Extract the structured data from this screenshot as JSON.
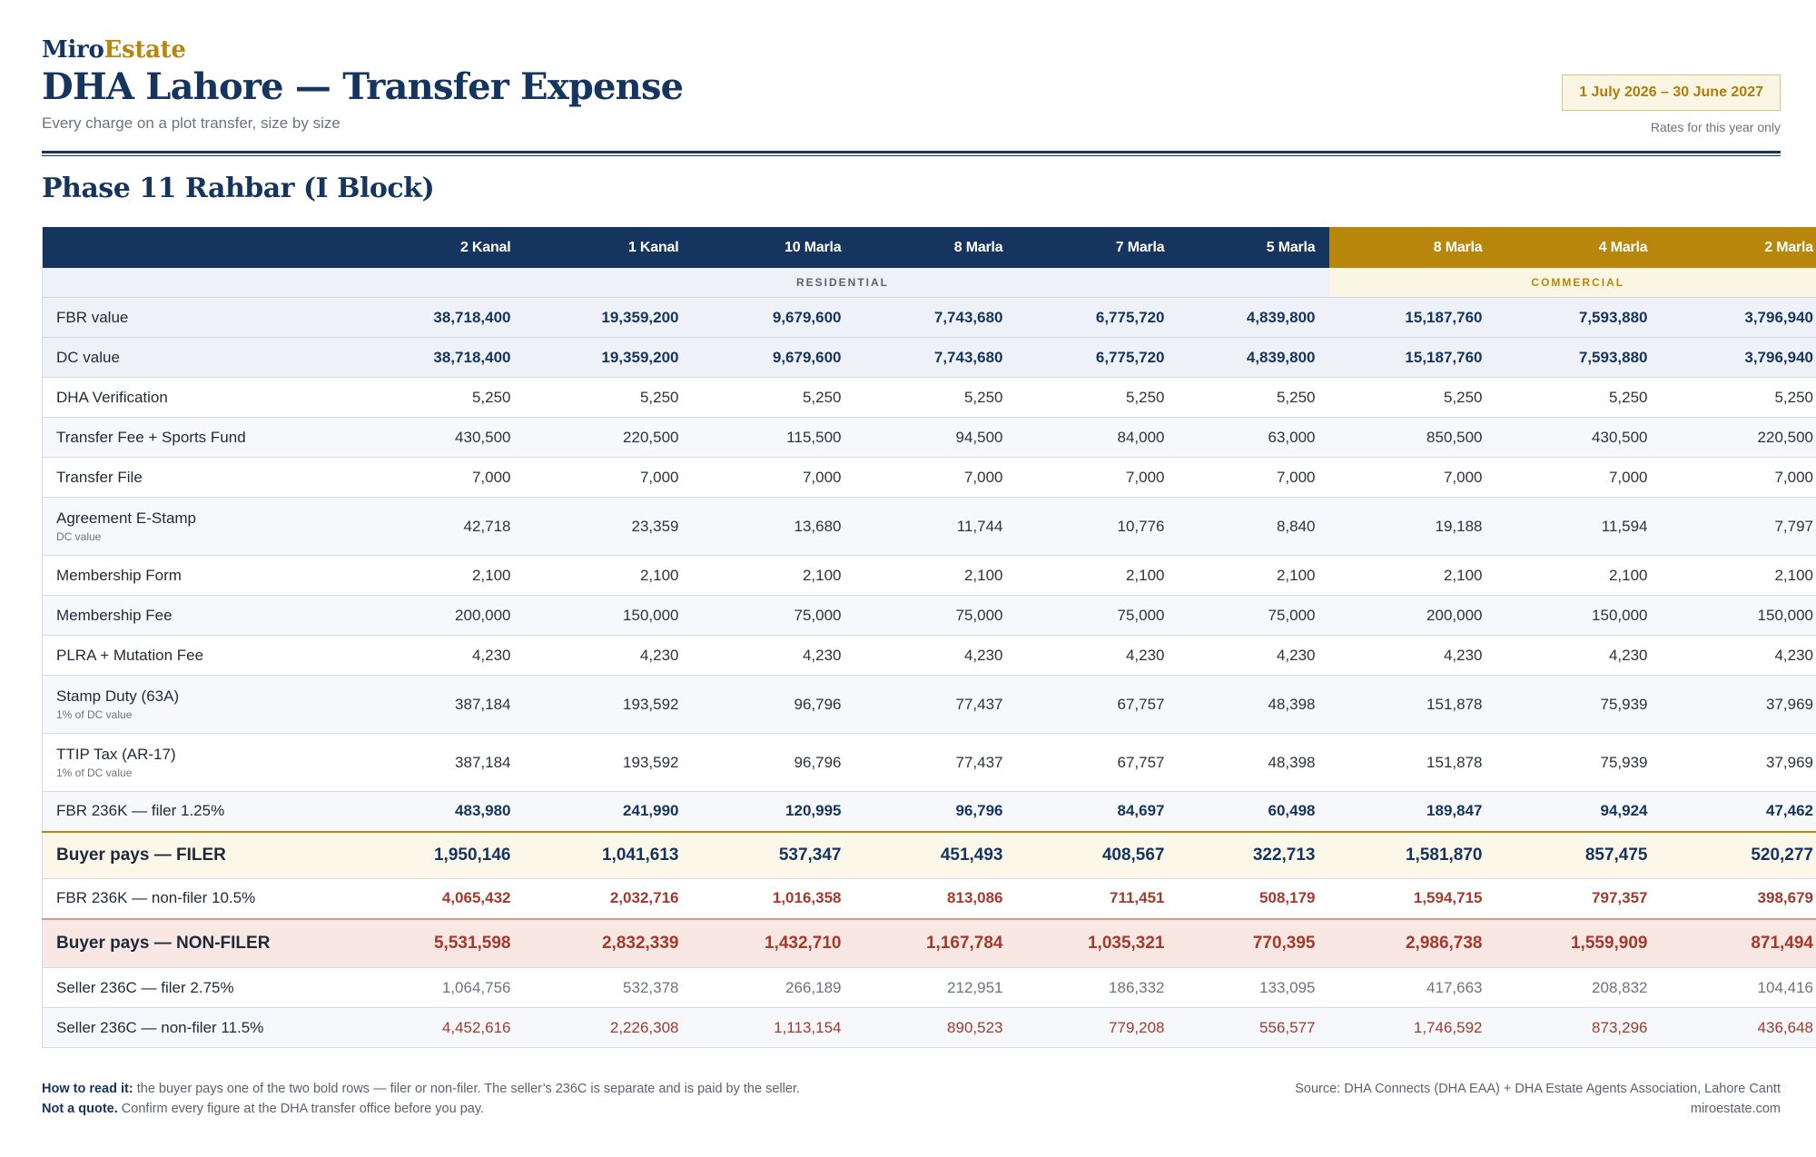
{
  "header": {
    "brand_part1": "Miro",
    "brand_part2": "Estate",
    "title": "DHA Lahore — Transfer Expense",
    "subtitle": "Every charge on a plot transfer, size by size",
    "date_range": "1 July 2026 – 30 June 2027",
    "rates_note": "Rates for this year only"
  },
  "section_title": "Phase 11 Rahbar (I Block)",
  "table": {
    "columns": [
      "2 Kanal",
      "1 Kanal",
      "10 Marla",
      "8 Marla",
      "7 Marla",
      "5 Marla",
      "8 Marla",
      "4 Marla",
      "2 Marla"
    ],
    "group_residential": "RESIDENTIAL",
    "group_commercial": "COMMERCIAL",
    "rows": [
      {
        "label": "FBR value",
        "note": "",
        "values": [
          "38,718,400",
          "19,359,200",
          "9,679,600",
          "7,743,680",
          "6,775,720",
          "4,839,800",
          "15,187,760",
          "7,593,880",
          "3,796,940"
        ]
      },
      {
        "label": "DC value",
        "note": "",
        "values": [
          "38,718,400",
          "19,359,200",
          "9,679,600",
          "7,743,680",
          "6,775,720",
          "4,839,800",
          "15,187,760",
          "7,593,880",
          "3,796,940"
        ]
      },
      {
        "label": "DHA Verification",
        "note": "",
        "values": [
          "5,250",
          "5,250",
          "5,250",
          "5,250",
          "5,250",
          "5,250",
          "5,250",
          "5,250",
          "5,250"
        ]
      },
      {
        "label": "Transfer Fee + Sports Fund",
        "note": "",
        "values": [
          "430,500",
          "220,500",
          "115,500",
          "94,500",
          "84,000",
          "63,000",
          "850,500",
          "430,500",
          "220,500"
        ]
      },
      {
        "label": "Transfer File",
        "note": "",
        "values": [
          "7,000",
          "7,000",
          "7,000",
          "7,000",
          "7,000",
          "7,000",
          "7,000",
          "7,000",
          "7,000"
        ]
      },
      {
        "label": "Agreement E-Stamp",
        "note": "DC value",
        "values": [
          "42,718",
          "23,359",
          "13,680",
          "11,744",
          "10,776",
          "8,840",
          "19,188",
          "11,594",
          "7,797"
        ]
      },
      {
        "label": "Membership Form",
        "note": "",
        "values": [
          "2,100",
          "2,100",
          "2,100",
          "2,100",
          "2,100",
          "2,100",
          "2,100",
          "2,100",
          "2,100"
        ]
      },
      {
        "label": "Membership Fee",
        "note": "",
        "values": [
          "200,000",
          "150,000",
          "75,000",
          "75,000",
          "75,000",
          "75,000",
          "200,000",
          "150,000",
          "150,000"
        ]
      },
      {
        "label": "PLRA + Mutation Fee",
        "note": "",
        "values": [
          "4,230",
          "4,230",
          "4,230",
          "4,230",
          "4,230",
          "4,230",
          "4,230",
          "4,230",
          "4,230"
        ]
      },
      {
        "label": "Stamp Duty (63A)",
        "note": "1% of DC value",
        "values": [
          "387,184",
          "193,592",
          "96,796",
          "77,437",
          "67,757",
          "48,398",
          "151,878",
          "75,939",
          "37,969"
        ]
      },
      {
        "label": "TTIP Tax (AR-17)",
        "note": "1% of DC value",
        "values": [
          "387,184",
          "193,592",
          "96,796",
          "77,437",
          "67,757",
          "48,398",
          "151,878",
          "75,939",
          "37,969"
        ]
      },
      {
        "label": "FBR 236K — filer 1.25%",
        "note": "",
        "values": [
          "483,980",
          "241,990",
          "120,995",
          "96,796",
          "84,697",
          "60,498",
          "189,847",
          "94,924",
          "47,462"
        ]
      },
      {
        "label": "Buyer pays — FILER",
        "note": "",
        "values": [
          "1,950,146",
          "1,041,613",
          "537,347",
          "451,493",
          "408,567",
          "322,713",
          "1,581,870",
          "857,475",
          "520,277"
        ]
      },
      {
        "label": "FBR 236K — non-filer 10.5%",
        "note": "",
        "values": [
          "4,065,432",
          "2,032,716",
          "1,016,358",
          "813,086",
          "711,451",
          "508,179",
          "1,594,715",
          "797,357",
          "398,679"
        ]
      },
      {
        "label": "Buyer pays — NON-FILER",
        "note": "",
        "values": [
          "5,531,598",
          "2,832,339",
          "1,432,710",
          "1,167,784",
          "1,035,321",
          "770,395",
          "2,986,738",
          "1,559,909",
          "871,494"
        ]
      },
      {
        "label": "Seller 236C — filer 2.75%",
        "note": "",
        "values": [
          "1,064,756",
          "532,378",
          "266,189",
          "212,951",
          "186,332",
          "133,095",
          "417,663",
          "208,832",
          "104,416"
        ]
      },
      {
        "label": "Seller 236C — non-filer 11.5%",
        "note": "",
        "values": [
          "4,452,616",
          "2,226,308",
          "1,113,154",
          "890,523",
          "779,208",
          "556,577",
          "1,746,592",
          "873,296",
          "436,648"
        ]
      }
    ]
  },
  "footer": {
    "how_label": "How to read it:",
    "how_text": " the buyer pays one of the two bold rows — filer or non-filer. The seller’s 236C is separate and is paid by the seller.",
    "quote_label": "Not a quote.",
    "quote_text": " Confirm every figure at the DHA transfer office before you pay.",
    "source": "Source: DHA Connects (DHA EAA) + DHA Estate Agents Association, Lahore Cantt",
    "website": "miroestate.com"
  }
}
